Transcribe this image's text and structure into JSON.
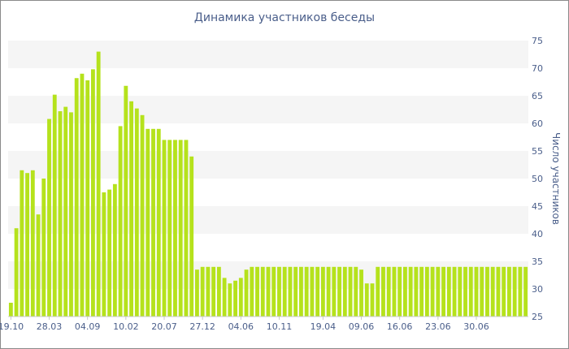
{
  "chart_data": {
    "type": "bar",
    "title": "Динамика участников беседы",
    "xlabel": "",
    "ylabel": "Число участников",
    "ylim": [
      25,
      75
    ],
    "yticks": [
      25,
      30,
      35,
      40,
      45,
      50,
      55,
      60,
      65,
      70,
      75
    ],
    "y_axis_side": "right",
    "grid": "alternating horizontal bands",
    "bar_color": "#b5e21c",
    "band_color": "#f5f5f5",
    "text_color": "#4a5e8a",
    "x_tick_labels": [
      "19.10",
      "28.03",
      "04.09",
      "10.02",
      "20.07",
      "27.12",
      "04.06",
      "10.11",
      "19.04",
      "09.06",
      "16.06",
      "23.06",
      "30.06"
    ],
    "x_tick_bar_index": [
      0,
      7,
      14,
      21,
      28,
      35,
      42,
      49,
      57,
      64,
      71,
      78,
      85
    ],
    "values": [
      27.5,
      41,
      51.5,
      51,
      51.5,
      43.5,
      50,
      60.8,
      65.2,
      62.2,
      63,
      62,
      68.2,
      69,
      67.8,
      69.8,
      73,
      47.5,
      48,
      49,
      59.5,
      66.8,
      64,
      62.7,
      61.5,
      59,
      59,
      59,
      57,
      57,
      57,
      57,
      57,
      54,
      33.5,
      34,
      34,
      34,
      34,
      32,
      31,
      31.5,
      32,
      33.5,
      34,
      34,
      34,
      34,
      34,
      34,
      34,
      34,
      34,
      34,
      34,
      34,
      34,
      34,
      34,
      34,
      34,
      34,
      34,
      34,
      33.5,
      31,
      31,
      34,
      34,
      34,
      34,
      34,
      34,
      34,
      34,
      34,
      34,
      34,
      34,
      34,
      34,
      34,
      34,
      34,
      34,
      34,
      34,
      34,
      34,
      34,
      34,
      34,
      34,
      34,
      34
    ]
  }
}
